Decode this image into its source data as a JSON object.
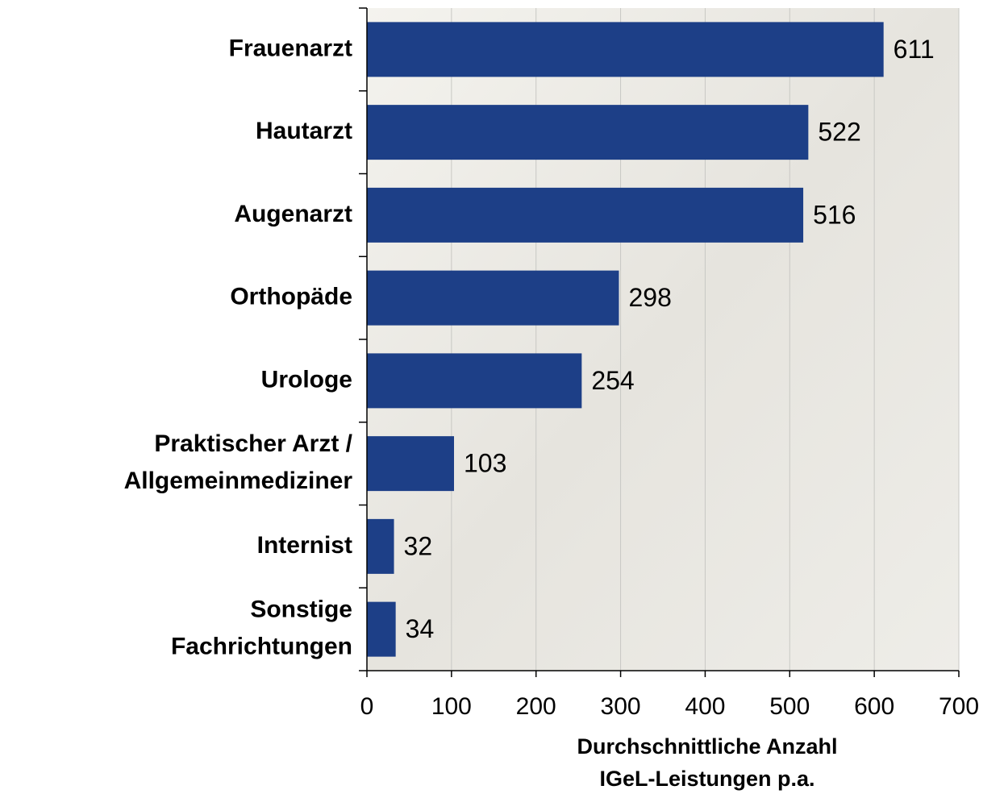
{
  "chart_data": {
    "type": "barh",
    "categories": [
      [
        "Frauenarzt"
      ],
      [
        "Hautarzt"
      ],
      [
        "Augenarzt"
      ],
      [
        "Orthopäde"
      ],
      [
        "Urologe"
      ],
      [
        "Praktischer Arzt /",
        "Allgemeinmediziner"
      ],
      [
        "Internist"
      ],
      [
        "Sonstige",
        "Fachrichtungen"
      ]
    ],
    "values": [
      611,
      522,
      516,
      298,
      254,
      103,
      32,
      34
    ],
    "color": "#1d3f87",
    "xlim": [
      0,
      700
    ],
    "xticks": [
      0,
      100,
      200,
      300,
      400,
      500,
      600,
      700
    ],
    "x_label": [
      "Durchschnittliche Anzahl",
      "IGeL-Leistungen p.a."
    ],
    "grid": true
  }
}
